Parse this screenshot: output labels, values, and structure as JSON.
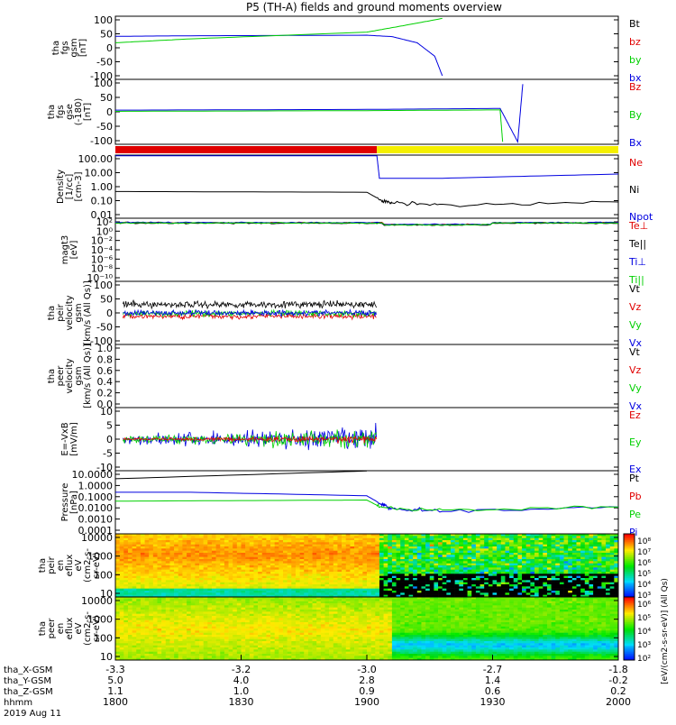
{
  "title": "P5 (TH-A) fields and ground moments overview",
  "colors": {
    "black": "#000000",
    "red": "#e00000",
    "green": "#00d000",
    "blue": "#0000e0",
    "yellow": "#f5f000"
  },
  "chart_data": [
    {
      "type": "line",
      "panel": "fgs_gsm",
      "ylabel": [
        "tha",
        "fgs",
        "gsm",
        "[nT]"
      ],
      "yticks": [
        "100",
        "50",
        "0",
        "-50",
        "-100"
      ],
      "ylim": [
        -100,
        100
      ],
      "legend": [
        "Bt",
        "bz",
        "by",
        "bx"
      ],
      "legend_colors": [
        "black",
        "red",
        "green",
        "blue"
      ],
      "series": [
        {
          "name": "Bx",
          "color": "blue",
          "x": [
            1800,
            1830,
            1900,
            1910,
            1920,
            1927,
            1930
          ],
          "y": [
            41,
            43,
            45,
            40,
            18,
            -30,
            -100
          ]
        },
        {
          "name": "By",
          "color": "green",
          "x": [
            1800,
            1830,
            1900,
            1915,
            1930
          ],
          "y": [
            18,
            32,
            56,
            80,
            105
          ]
        }
      ]
    },
    {
      "type": "line",
      "panel": "fgs_gse",
      "ylabel": [
        "tha",
        "fgs",
        "gse",
        "(-180)",
        "[nT]"
      ],
      "yticks": [
        "100",
        "50",
        "0",
        "-50",
        "-100"
      ],
      "ylim": [
        -120,
        120
      ],
      "legend": [
        "Bz",
        "By",
        "Bx"
      ],
      "legend_colors": [
        "red",
        "green",
        "blue"
      ],
      "series": [
        {
          "name": "Bx",
          "color": "blue",
          "x": [
            1800,
            1900,
            1953,
            1960,
            1962
          ],
          "y": [
            7,
            10,
            14,
            -125,
            115
          ]
        },
        {
          "name": "By",
          "color": "green",
          "x": [
            1800,
            1900,
            1953,
            1954
          ],
          "y": [
            2,
            5,
            8,
            -125
          ]
        }
      ]
    },
    {
      "type": "bar",
      "panel": "mode_bar",
      "segments": [
        {
          "from": 1800,
          "to": 1904,
          "color": "red"
        },
        {
          "from": 1904,
          "to": 2000,
          "color": "yellow"
        }
      ]
    },
    {
      "type": "line",
      "panel": "density",
      "ylabel": [
        "Density",
        "[1/cc]",
        "[cm-3]"
      ],
      "yticks": [
        "100.00",
        "10.00",
        "1.00",
        "0.10",
        "0.01"
      ],
      "ylog": true,
      "legend": [
        "Ne",
        "Ni",
        "Npot"
      ],
      "legend_colors": [
        "red",
        "black",
        "blue"
      ],
      "series": [
        {
          "name": "Npot",
          "color": "blue",
          "x": [
            1800,
            1904,
            1905,
            1930,
            2000
          ],
          "y": [
            160,
            160,
            4,
            4,
            8
          ]
        },
        {
          "name": "Ni",
          "color": "black",
          "x": [
            1800,
            1900,
            1906,
            1910,
            1930,
            2000
          ],
          "y": [
            0.45,
            0.4,
            0.1,
            0.07,
            0.05,
            0.08
          ]
        }
      ]
    },
    {
      "type": "line",
      "panel": "temperature",
      "ylabel": [
        "magt3",
        "[eV]"
      ],
      "yticks": [
        "10²",
        "10⁰",
        "10⁻²",
        "10⁻⁴",
        "10⁻⁶",
        "10⁻⁸",
        "10⁻¹⁰"
      ],
      "legend": [
        "Te⊥",
        "Te||",
        "Ti⊥",
        "Ti||"
      ],
      "legend_colors": [
        "red",
        "black",
        "blue",
        "green"
      ]
    },
    {
      "type": "line",
      "panel": "peir_velocity",
      "ylabel": [
        "tha",
        "peir",
        "velocity",
        "gsm",
        "[km/s (All Qs)]"
      ],
      "yticks": [
        "100",
        "50",
        "0",
        "-50",
        "-100"
      ],
      "ylim": [
        -100,
        100
      ],
      "legend": [
        "Vt",
        "Vz",
        "Vy",
        "Vx"
      ],
      "legend_colors": [
        "black",
        "red",
        "green",
        "blue"
      ],
      "series": [
        {
          "name": "Vt",
          "color": "black",
          "mean": 30
        },
        {
          "name": "Vz",
          "color": "red",
          "mean": -12
        },
        {
          "name": "Vy",
          "color": "green",
          "mean": -2
        },
        {
          "name": "Vx",
          "color": "blue",
          "mean": 0
        }
      ],
      "x_end": 1904
    },
    {
      "type": "line",
      "panel": "peer_velocity",
      "ylabel": [
        "tha",
        "peer",
        "velocity",
        "gsm",
        "[km/s (All Qs)]"
      ],
      "yticks": [
        "1.0",
        "0.8",
        "0.6",
        "0.4",
        "0.2",
        "0.0"
      ],
      "legend": [
        "Vt",
        "Vz",
        "Vy",
        "Vx"
      ],
      "legend_colors": [
        "black",
        "red",
        "green",
        "blue"
      ]
    },
    {
      "type": "line",
      "panel": "efield",
      "ylabel": [
        "E=-VxB",
        "[mV/m]"
      ],
      "yticks": [
        "10",
        "5",
        "0",
        "-5",
        "-10"
      ],
      "ylim": [
        -10,
        10
      ],
      "legend": [
        "Ez",
        "Ey",
        "Ex"
      ],
      "legend_colors": [
        "red",
        "green",
        "blue"
      ]
    },
    {
      "type": "line",
      "panel": "pressure",
      "ylabel": [
        "Pressure",
        "[nPa]"
      ],
      "yticks": [
        "10.0000",
        "1.0000",
        "0.1000",
        "0.0100",
        "0.0010",
        "0.0001"
      ],
      "ylog": true,
      "legend": [
        "Pt",
        "Pb",
        "Pe",
        "Pi"
      ],
      "legend_colors": [
        "black",
        "red",
        "green",
        "blue"
      ],
      "series": [
        {
          "name": "Pt",
          "color": "black",
          "x": [
            1800,
            1900
          ],
          "y": [
            4,
            20
          ]
        },
        {
          "name": "Pi",
          "color": "blue",
          "x": [
            1800,
            1830,
            1900,
            1906,
            1910,
            1930,
            2000
          ],
          "y": [
            0.25,
            0.25,
            0.12,
            0.02,
            0.009,
            0.005,
            0.012
          ]
        },
        {
          "name": "Pe",
          "color": "green",
          "x": [
            1800,
            1900,
            1906,
            1930,
            2000
          ],
          "y": [
            0.04,
            0.05,
            0.01,
            0.006,
            0.012
          ]
        }
      ]
    },
    {
      "type": "heatmap",
      "panel": "peir_eflux",
      "ylabel": [
        "tha",
        "peir",
        "en",
        "eflux",
        "eV",
        "(cm2-s-",
        "sr-eV)"
      ],
      "yticks": [
        "10000",
        "1000",
        "100",
        "10"
      ],
      "cbar_ticks": [
        "10⁸",
        "10⁷",
        "10⁶",
        "10⁵",
        "10⁴",
        "10³"
      ]
    },
    {
      "type": "heatmap",
      "panel": "peer_eflux",
      "ylabel": [
        "tha",
        "peer",
        "en",
        "eflux",
        "eV",
        "(cm2-s-",
        "sr-eV)"
      ],
      "yticks": [
        "10000",
        "1000",
        "100",
        "10"
      ],
      "cbar_ticks": [
        "10⁶",
        "10⁵",
        "10⁴",
        "10³",
        "10²"
      ],
      "cbar_label": "[eV/(cm2-s-sr-eV)] (All Qs)"
    }
  ],
  "xaxis": {
    "rows": [
      {
        "label": "tha_X-GSM",
        "values": [
          "-3.3",
          "-3.2",
          "-3.0",
          "-2.7",
          "-1.8"
        ]
      },
      {
        "label": "tha_Y-GSM",
        "values": [
          "5.0",
          "4.0",
          "2.8",
          "1.4",
          "-0.2"
        ]
      },
      {
        "label": "tha_Z-GSM",
        "values": [
          "1.1",
          "1.0",
          "0.9",
          "0.6",
          "0.2"
        ]
      },
      {
        "label": "hhmm",
        "values": [
          "1800",
          "1830",
          "1900",
          "1930",
          "2000"
        ]
      }
    ],
    "date": "2019 Aug 11"
  }
}
